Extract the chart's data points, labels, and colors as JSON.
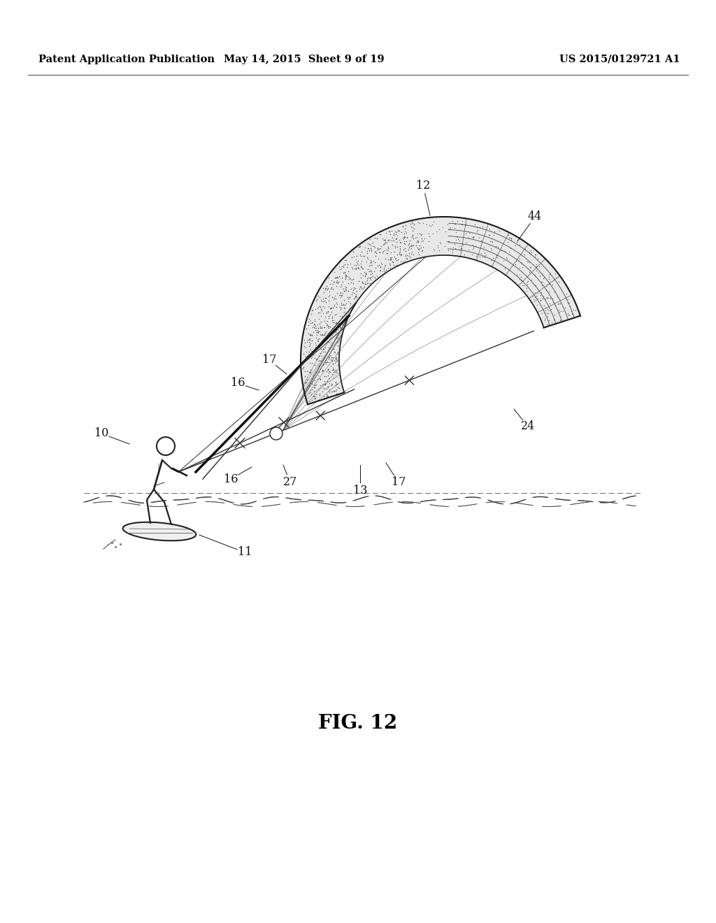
{
  "header_left": "Patent Application Publication",
  "header_middle": "May 14, 2015  Sheet 9 of 19",
  "header_right": "US 2015/0129721 A1",
  "figure_label": "FIG. 12",
  "bg_color": "#ffffff",
  "line_color": "#000000",
  "header_fontsize": 10.5,
  "figure_label_fontsize": 20,
  "page_width": 10.24,
  "page_height": 13.2,
  "dpi": 100
}
